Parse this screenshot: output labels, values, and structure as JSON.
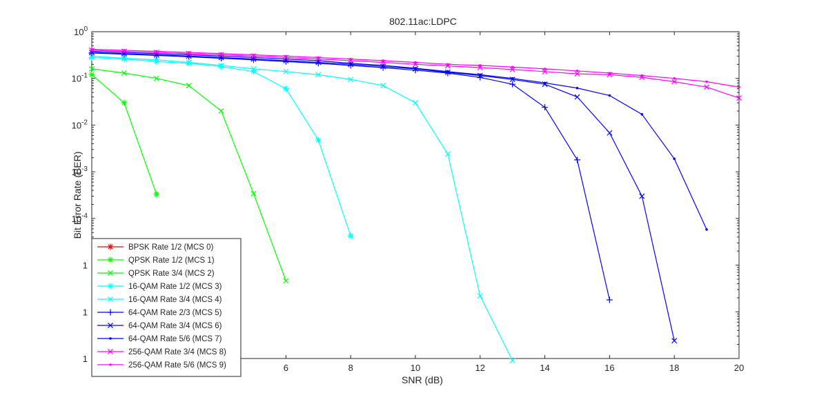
{
  "chart_data": {
    "type": "line",
    "title": "802.11ac:LDPC",
    "xlabel": "SNR (dB)",
    "ylabel": "Bit Error Rate (BER)",
    "xlim": [
      0,
      20
    ],
    "ylim": [
      1e-07,
      1
    ],
    "yscale": "log",
    "grid": false,
    "legend_position": "bottom-left",
    "x_ticks": [
      "6",
      "8",
      "10",
      "12",
      "14",
      "16",
      "18",
      "20"
    ],
    "x_tick_values": [
      6,
      8,
      10,
      12,
      14,
      16,
      18,
      20
    ],
    "y_ticks": [
      {
        "base": "10",
        "exp": "0"
      },
      {
        "base": "10",
        "exp": "-1"
      },
      {
        "base": "10",
        "exp": "-2"
      },
      {
        "base": "10",
        "exp": "-3"
      },
      {
        "base": "10",
        "exp": "-4"
      },
      {
        "base": "1",
        "exp": ""
      },
      {
        "base": "1",
        "exp": ""
      },
      {
        "base": "1",
        "exp": ""
      }
    ],
    "y_tick_values": [
      0,
      -1,
      -2,
      -3,
      -4,
      -5,
      -6,
      -7
    ],
    "series": [
      {
        "name": "BPSK Rate 1/2 (MCS 0)",
        "color": "#ff0000",
        "marker": "star",
        "x": [],
        "y": []
      },
      {
        "name": "QPSK Rate 1/2 (MCS 1)",
        "color": "#00ff00",
        "marker": "star",
        "x": [
          0,
          1,
          2
        ],
        "y": [
          0.12,
          0.03,
          0.00033
        ]
      },
      {
        "name": "QPSK Rate 3/4 (MCS 2)",
        "color": "#00ff00",
        "marker": "x",
        "x": [
          0,
          1,
          2,
          3,
          4,
          5,
          6
        ],
        "y": [
          0.16,
          0.13,
          0.1,
          0.07,
          0.02,
          0.00034,
          4.6e-06
        ]
      },
      {
        "name": "16-QAM Rate 1/2 (MCS 3)",
        "color": "#00ffff",
        "marker": "star",
        "x": [
          0,
          1,
          2,
          3,
          4,
          5,
          6,
          7,
          8
        ],
        "y": [
          0.28,
          0.26,
          0.23,
          0.21,
          0.18,
          0.14,
          0.06,
          0.0048,
          4.2e-05
        ]
      },
      {
        "name": "16-QAM Rate 3/4 (MCS 4)",
        "color": "#00ffff",
        "marker": "x",
        "x": [
          0,
          1,
          2,
          3,
          4,
          5,
          6,
          7,
          8,
          9,
          10,
          11,
          12,
          13
        ],
        "y": [
          0.3,
          0.27,
          0.25,
          0.22,
          0.19,
          0.16,
          0.14,
          0.12,
          0.095,
          0.07,
          0.03,
          0.0024,
          2.2e-06,
          9e-08
        ]
      },
      {
        "name": "64-QAM Rate 2/3 (MCS 5)",
        "color": "#0000ff",
        "marker": "plus",
        "x": [
          0,
          1,
          2,
          3,
          4,
          5,
          6,
          7,
          8,
          9,
          10,
          11,
          12,
          13,
          14,
          15,
          16
        ],
        "y": [
          0.35,
          0.33,
          0.31,
          0.29,
          0.27,
          0.25,
          0.23,
          0.21,
          0.19,
          0.17,
          0.15,
          0.13,
          0.105,
          0.075,
          0.024,
          0.0018,
          1.8e-06
        ]
      },
      {
        "name": "64-QAM Rate 3/4 (MCS 6)",
        "color": "#0000ff",
        "marker": "x",
        "x": [
          0,
          1,
          2,
          3,
          4,
          5,
          6,
          7,
          8,
          9,
          10,
          11,
          12,
          13,
          14,
          15,
          16,
          17,
          18
        ],
        "y": [
          0.36,
          0.34,
          0.32,
          0.3,
          0.28,
          0.26,
          0.24,
          0.22,
          0.2,
          0.18,
          0.16,
          0.135,
          0.115,
          0.095,
          0.075,
          0.04,
          0.0068,
          0.0003,
          2.4e-07
        ]
      },
      {
        "name": "64-QAM Rate 5/6 (MCS 7)",
        "color": "#0000ff",
        "marker": "dot",
        "x": [
          0,
          1,
          2,
          3,
          4,
          5,
          6,
          7,
          8,
          9,
          10,
          11,
          12,
          13,
          14,
          15,
          16,
          17,
          18,
          19
        ],
        "y": [
          0.38,
          0.36,
          0.34,
          0.32,
          0.3,
          0.28,
          0.26,
          0.24,
          0.21,
          0.19,
          0.165,
          0.14,
          0.12,
          0.1,
          0.08,
          0.062,
          0.043,
          0.017,
          0.0019,
          5.8e-05
        ]
      },
      {
        "name": "256-QAM Rate 3/4 (MCS 8)",
        "color": "#ff00ff",
        "marker": "x",
        "x": [
          0,
          1,
          2,
          3,
          4,
          5,
          6,
          7,
          8,
          9,
          10,
          11,
          12,
          13,
          14,
          15,
          16,
          17,
          18,
          19,
          20
        ],
        "y": [
          0.4,
          0.38,
          0.36,
          0.34,
          0.32,
          0.3,
          0.28,
          0.26,
          0.24,
          0.22,
          0.2,
          0.185,
          0.17,
          0.155,
          0.14,
          0.125,
          0.12,
          0.105,
          0.085,
          0.065,
          0.038
        ]
      },
      {
        "name": "256-QAM Rate 5/6 (MCS 9)",
        "color": "#ff00ff",
        "marker": "dot",
        "x": [
          0,
          1,
          2,
          3,
          4,
          5,
          6,
          7,
          8,
          9,
          10,
          11,
          12,
          13,
          14,
          15,
          16,
          17,
          18,
          19,
          20
        ],
        "y": [
          0.42,
          0.4,
          0.38,
          0.36,
          0.34,
          0.32,
          0.3,
          0.28,
          0.26,
          0.24,
          0.22,
          0.2,
          0.19,
          0.175,
          0.16,
          0.145,
          0.13,
          0.115,
          0.1,
          0.085,
          0.065
        ]
      }
    ]
  }
}
